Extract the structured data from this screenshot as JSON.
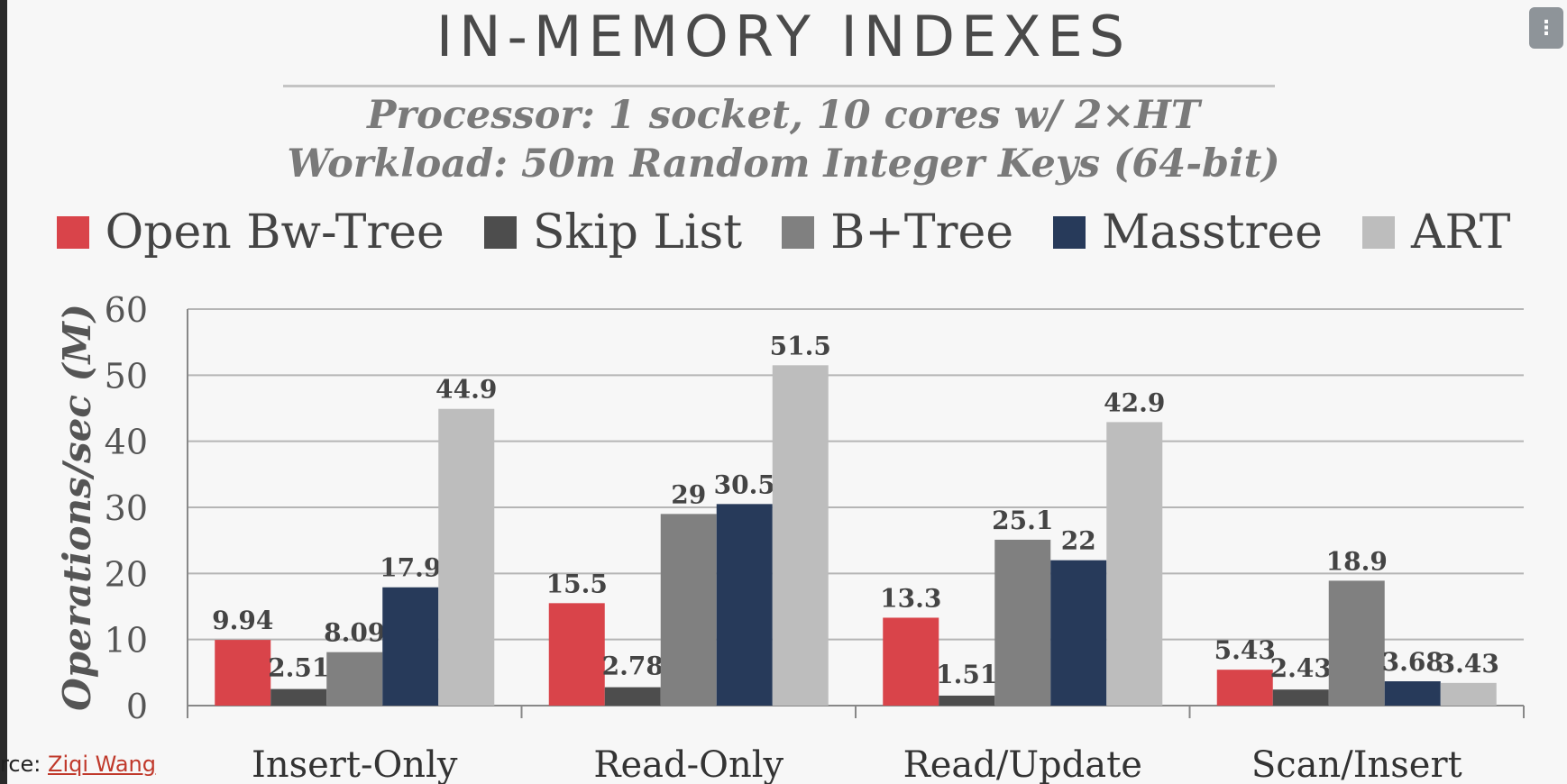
{
  "slide": {
    "title": "IN-MEMORY INDEXES",
    "subtitle_line1": "Processor: 1 socket, 10 cores w/ 2×HT",
    "subtitle_line2": "Workload: 50m Random Integer Keys (64-bit)",
    "credit_prefix": "rce: ",
    "credit_link": "Ziqi Wang",
    "menu_icon": "⋮"
  },
  "chart_data": {
    "type": "bar",
    "title": "",
    "xlabel": "",
    "ylabel": "Operations/sec (M)",
    "ylim": [
      0,
      60
    ],
    "yticks": [
      "0",
      "10",
      "20",
      "30",
      "40",
      "50",
      "60"
    ],
    "grid": true,
    "legend_position": "top",
    "categories": [
      "Insert-Only",
      "Read-Only",
      "Read/Update",
      "Scan/Insert"
    ],
    "series": [
      {
        "name": "Open Bw-Tree",
        "color": "#d9444a",
        "values": [
          9.94,
          15.5,
          13.3,
          5.43
        ],
        "labels": [
          "9.94",
          "15.5",
          "13.3",
          "5.43"
        ]
      },
      {
        "name": "Skip List",
        "color": "#4d4d4d",
        "values": [
          2.51,
          2.78,
          1.51,
          2.43
        ],
        "labels": [
          "2.51",
          "2.78",
          "1.51",
          "2.43"
        ]
      },
      {
        "name": "B+Tree",
        "color": "#808080",
        "values": [
          8.09,
          29,
          25.1,
          18.9
        ],
        "labels": [
          "8.09",
          "29",
          "25.1",
          "18.9"
        ]
      },
      {
        "name": "Masstree",
        "color": "#273a5a",
        "values": [
          17.9,
          30.5,
          22,
          3.68
        ],
        "labels": [
          "17.9",
          "30.5",
          "22",
          "3.68"
        ]
      },
      {
        "name": "ART",
        "color": "#bdbdbd",
        "values": [
          44.9,
          51.5,
          42.9,
          3.43
        ],
        "labels": [
          "44.9",
          "51.5",
          "42.9",
          "3.43"
        ]
      }
    ]
  }
}
